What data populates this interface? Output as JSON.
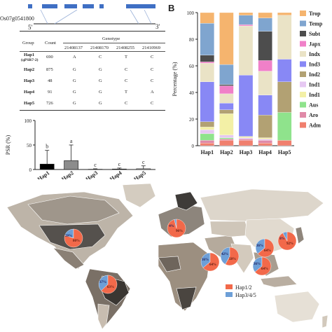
{
  "panel_b": "B",
  "gene": {
    "id": "Os07g0541800",
    "end5": "5'",
    "end3": "3'"
  },
  "hap_table": {
    "genotype_header": "Genotype",
    "group_header": "Group",
    "count_header": "Count",
    "positions": [
      "21408137",
      "21408170",
      "21408255",
      "21410969"
    ],
    "rows": [
      {
        "group": "Hap1",
        "sub": "(qPSR7-2)",
        "count": "690",
        "g": [
          "A",
          "C",
          "T",
          "C"
        ]
      },
      {
        "group": "Hap2",
        "sub": "",
        "count": "875",
        "g": [
          "G",
          "G",
          "C",
          "C"
        ]
      },
      {
        "group": "Hap3",
        "sub": "",
        "count": "48",
        "g": [
          "G",
          "G",
          "C",
          "C"
        ]
      },
      {
        "group": "Hap4",
        "sub": "",
        "count": "91",
        "g": [
          "G",
          "G",
          "T",
          "A"
        ]
      },
      {
        "group": "Hap5",
        "sub": "",
        "count": "726",
        "g": [
          "G",
          "G",
          "C",
          "C"
        ]
      }
    ]
  },
  "chart_data": [
    {
      "type": "bar",
      "ylabel": "PSR (%)",
      "ylim": [
        0,
        100
      ],
      "yticks": [
        "0",
        "50",
        "100"
      ],
      "categories": [
        "Hap1",
        "Hap2",
        "Hap3",
        "Hap4",
        "Hap5"
      ],
      "values": [
        11,
        18,
        0.5,
        1,
        1.5
      ],
      "errors": [
        28,
        32,
        1,
        2,
        6
      ],
      "letters": [
        "b",
        "a",
        "c",
        "c",
        "c"
      ],
      "colors": [
        "#000000",
        "#8c8c8c",
        "#ffffff",
        "#ffffff",
        "#ffffff"
      ]
    },
    {
      "type": "bar",
      "stacked": true,
      "ylabel": "Percentage (%)",
      "ylim": [
        0,
        100
      ],
      "yticks": [
        "0",
        "20",
        "40",
        "60",
        "80",
        "100"
      ],
      "categories": [
        "Hap1",
        "Hap2",
        "Hap3",
        "Hap4",
        "Hap5"
      ],
      "legend": [
        "Trop",
        "Temp",
        "Subt",
        "Japx",
        "Indx",
        "Ind3",
        "Ind2",
        "Ind1",
        "Ind1",
        "Aus",
        "Aro",
        "Adm"
      ],
      "series": [
        {
          "name": "Adm",
          "color": "#f07f6e",
          "values": [
            2,
            4,
            4,
            2,
            4
          ]
        },
        {
          "name": "Aro",
          "color": "#e08aa8",
          "values": [
            2,
            1,
            1,
            2,
            0
          ]
        },
        {
          "name": "Aus",
          "color": "#8fe38c",
          "values": [
            5,
            1,
            0,
            0,
            21
          ]
        },
        {
          "name": "Ind1",
          "color": "#e6c8f2",
          "values": [
            3,
            2,
            1,
            1,
            0
          ]
        },
        {
          "name": "Ind1",
          "color": "#f3f0a6",
          "values": [
            2,
            16,
            1,
            1,
            0
          ]
        },
        {
          "name": "Ind2",
          "color": "#b2a173",
          "values": [
            4,
            3,
            0,
            17,
            23
          ]
        },
        {
          "name": "Ind3",
          "color": "#8888f5",
          "values": [
            30,
            5,
            46,
            15,
            17
          ]
        },
        {
          "name": "Indx",
          "color": "#eae3c6",
          "values": [
            14,
            7,
            37,
            18,
            33
          ]
        },
        {
          "name": "Japx",
          "color": "#f080c8",
          "values": [
            1,
            6,
            1,
            8,
            0
          ]
        },
        {
          "name": "Subt",
          "color": "#4d4d4d",
          "values": [
            5,
            1,
            0,
            22,
            0
          ]
        },
        {
          "name": "Temp",
          "color": "#7fa5cf",
          "values": [
            24,
            15,
            7,
            10,
            0
          ]
        },
        {
          "name": "Trop",
          "color": "#f5b46e",
          "values": [
            8,
            39,
            2,
            4,
            2
          ]
        }
      ]
    },
    {
      "type": "pie",
      "legend": [
        "Hap1/2",
        "Hap3/4/5"
      ],
      "colors": [
        "#f2694a",
        "#6d9fd7"
      ],
      "pies": [
        {
          "labels": [
            "20%",
            "80%"
          ],
          "values": [
            20,
            80
          ]
        },
        {
          "labels": [
            "4%",
            "96%"
          ],
          "values": [
            4,
            96
          ]
        },
        {
          "labels": [
            "8%",
            "92%"
          ],
          "values": [
            8,
            92
          ]
        },
        {
          "labels": [
            "36%",
            "64%"
          ],
          "values": [
            36,
            64
          ]
        },
        {
          "labels": [
            "37%",
            "63%"
          ],
          "values": [
            37,
            63
          ]
        },
        {
          "labels": [
            "42%",
            "58%"
          ],
          "values": [
            42,
            58
          ]
        },
        {
          "labels": [
            "36%",
            "64%"
          ],
          "values": [
            36,
            64
          ]
        },
        {
          "labels": [
            "36%",
            "64%"
          ],
          "values": [
            36,
            64
          ]
        }
      ]
    }
  ]
}
